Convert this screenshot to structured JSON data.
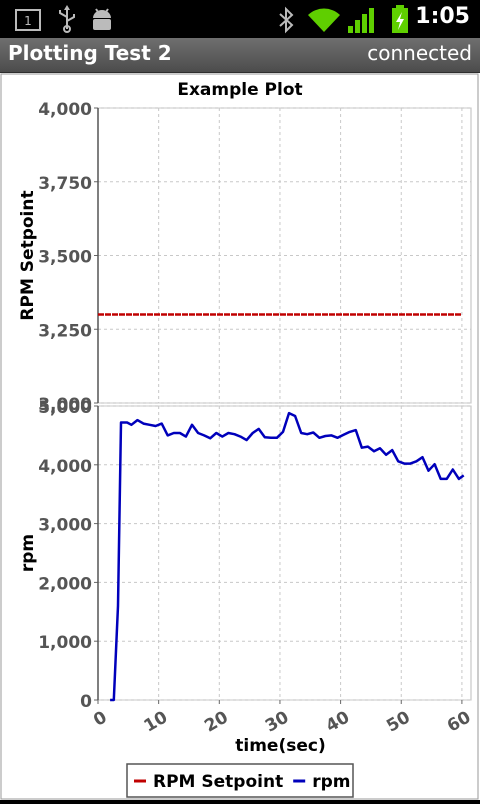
{
  "status_bar": {
    "time": "1:05",
    "notification_count": "1",
    "icons": [
      "notification-box-icon",
      "usb-icon",
      "android-debug-icon",
      "bluetooth-icon",
      "wifi-icon",
      "signal-icon",
      "battery-charging-icon"
    ]
  },
  "title_bar": {
    "app_title": "Plotting Test 2",
    "connection_status": "connected"
  },
  "colors": {
    "setpoint": "#c00000",
    "rpm": "#0000bb",
    "grid": "#c8c8c8"
  },
  "chart_data": [
    {
      "type": "line",
      "title": "Example Plot",
      "ylabel": "RPM Setpoint",
      "xlabel": "",
      "ylim": [
        3000,
        4000
      ],
      "xlim": [
        0,
        61.5
      ],
      "y_ticks": [
        "3,000",
        "3,250",
        "3,500",
        "3,750",
        "4,000"
      ],
      "y_tick_values": [
        3000,
        3250,
        3500,
        3750,
        4000
      ],
      "x_grid": [
        0,
        10,
        20,
        30,
        40,
        50,
        60
      ],
      "series": [
        {
          "name": "RPM Setpoint",
          "x": [
            0,
            60
          ],
          "y": [
            3300,
            3300
          ]
        }
      ]
    },
    {
      "type": "line",
      "xlabel": "time(sec)",
      "ylabel": "rpm",
      "ylim": [
        0,
        5000
      ],
      "xlim": [
        0,
        61.5
      ],
      "x_ticks": [
        "0",
        "10",
        "20",
        "30",
        "40",
        "50",
        "60"
      ],
      "x_tick_values": [
        0,
        10,
        20,
        30,
        40,
        50,
        60
      ],
      "y_ticks": [
        "0",
        "1,000",
        "2,000",
        "3,000",
        "4,000",
        "5,000"
      ],
      "y_tick_values": [
        0,
        1000,
        2000,
        3000,
        4000,
        5000
      ],
      "series": [
        {
          "name": "rpm",
          "x": [
            2,
            2.6,
            3.3,
            3.8,
            4.8,
            5.5,
            6.5,
            7.5,
            8.5,
            9.5,
            10.5,
            11.5,
            12.5,
            13.5,
            14.5,
            15.5,
            16.5,
            17.5,
            18.5,
            19.5,
            20.5,
            21.5,
            22.5,
            23.5,
            24.5,
            25.5,
            26.5,
            27.5,
            28.5,
            29.5,
            30.5,
            31.5,
            32.5,
            33.5,
            34.5,
            35.5,
            36.5,
            37.5,
            38.5,
            39.5,
            40.5,
            41.5,
            42.5,
            43.5,
            44.5,
            45.5,
            46.5,
            47.5,
            48.5,
            49.5,
            50.5,
            51.5,
            52.5,
            53.5,
            54.5,
            55.5,
            56.5,
            57.5,
            58.5,
            59.5,
            60.3
          ],
          "y": [
            0,
            0,
            1600,
            4720,
            4720,
            4680,
            4760,
            4700,
            4680,
            4660,
            4700,
            4500,
            4540,
            4540,
            4480,
            4680,
            4540,
            4500,
            4450,
            4540,
            4480,
            4540,
            4520,
            4480,
            4420,
            4540,
            4610,
            4470,
            4460,
            4460,
            4560,
            4880,
            4830,
            4540,
            4520,
            4550,
            4460,
            4490,
            4500,
            4460,
            4510,
            4560,
            4590,
            4290,
            4310,
            4230,
            4280,
            4170,
            4250,
            4060,
            4020,
            4020,
            4060,
            4130,
            3900,
            4010,
            3760,
            3760,
            3920,
            3760,
            3820
          ]
        }
      ]
    }
  ],
  "legend": {
    "entries": [
      {
        "label": "RPM Setpoint",
        "color": "#c00000"
      },
      {
        "label": "rpm",
        "color": "#0000bb"
      }
    ]
  }
}
